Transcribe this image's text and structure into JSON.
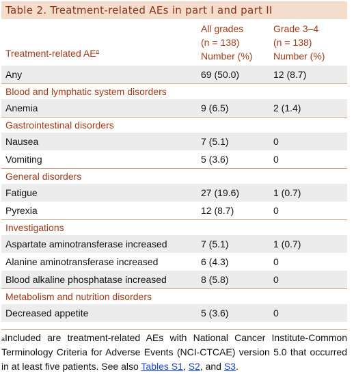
{
  "title": "Table 2.  Treatment-related AEs in part I and part II",
  "header": {
    "ae_label": "Treatment-related AE",
    "ae_mark": "a",
    "col1": [
      "All grades",
      "(n = 138)",
      "Number (%)"
    ],
    "col2": [
      "Grade 3–4",
      "(n = 138)",
      "Number (%)"
    ]
  },
  "rows": [
    {
      "type": "data",
      "label": "Any",
      "v1": "69 (50.0)",
      "v2": "12 (8.7)",
      "shaded": true
    },
    {
      "type": "section",
      "label": "Blood and lymphatic system disorders"
    },
    {
      "type": "data",
      "label": "Anemia",
      "v1": "9 (6.5)",
      "v2": "2 (1.4)",
      "shaded": true
    },
    {
      "type": "section",
      "label": "Gastrointestinal disorders"
    },
    {
      "type": "data",
      "label": "Nausea",
      "v1": "7 (5.1)",
      "v2": "0",
      "shaded": true
    },
    {
      "type": "data",
      "label": "Vomiting",
      "v1": "5 (3.6)",
      "v2": "0",
      "shaded": false
    },
    {
      "type": "section",
      "label": "General disorders"
    },
    {
      "type": "data",
      "label": "Fatigue",
      "v1": "27 (19.6)",
      "v2": "1 (0.7)",
      "shaded": true
    },
    {
      "type": "data",
      "label": "Pyrexia",
      "v1": "12 (8.7)",
      "v2": "0",
      "shaded": false
    },
    {
      "type": "section",
      "label": "Investigations"
    },
    {
      "type": "data",
      "label": "Aspartate aminotransferase increased",
      "v1": "7 (5.1)",
      "v2": "1 (0.7)",
      "shaded": true
    },
    {
      "type": "data",
      "label": "Alanine aminotransferase increased",
      "v1": "6 (4.3)",
      "v2": "0",
      "shaded": false
    },
    {
      "type": "data",
      "label": "Blood alkaline phosphatase increased",
      "v1": "8 (5.8)",
      "v2": "0",
      "shaded": true
    },
    {
      "type": "section",
      "label": "Metabolism and nutrition disorders"
    },
    {
      "type": "data",
      "label": "Decreased appetite",
      "v1": "5 (3.6)",
      "v2": "0",
      "shaded": true
    }
  ],
  "footnote": {
    "mark": "a",
    "text": "Included are treatment-related AEs with National Cancer Institute-Common Terminology Criteria for Adverse Events (NCI-CTCAE) version 5.0 that occurred in at least five patients. See also ",
    "link1": "Tables S1",
    "sep1": ", ",
    "link2": "S2",
    "sep2": ", and ",
    "link3": "S3",
    "end": "."
  },
  "colors": {
    "title_bg": "#f4dccd",
    "accent_text": "#a23a18",
    "shade": "#ececec",
    "link": "#1b46c4"
  }
}
